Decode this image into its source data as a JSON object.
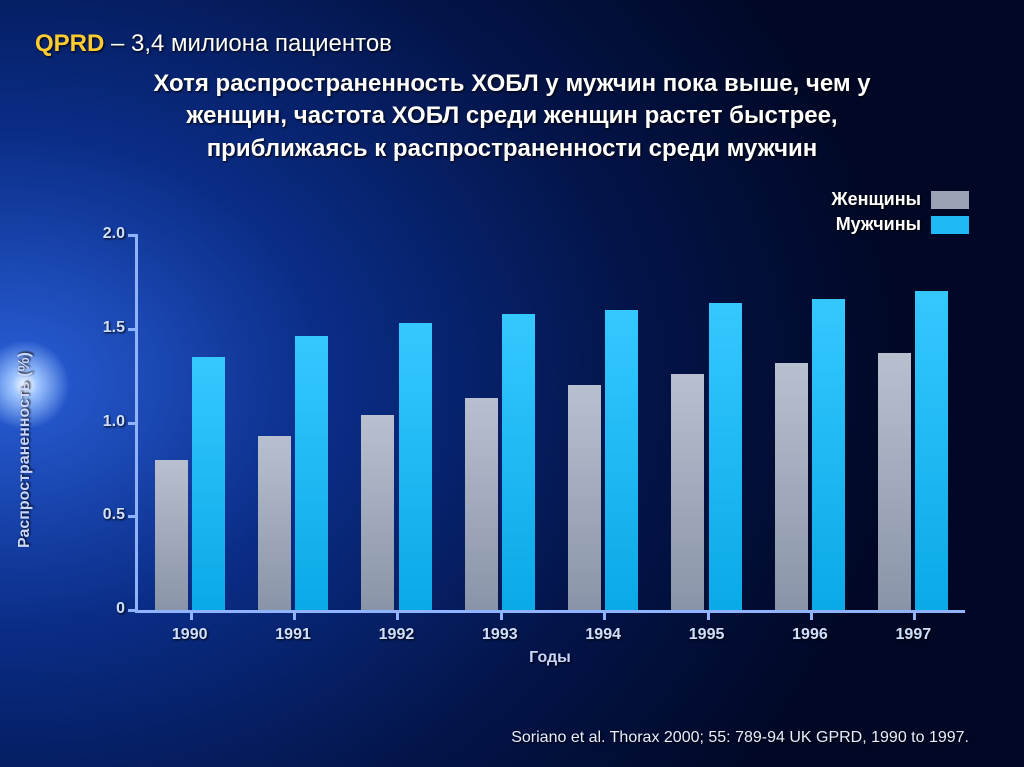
{
  "header": {
    "qprd": "QPRD",
    "patients": " – 3,4 милиона пациентов"
  },
  "subtitle_l1": "Хотя распространенность ХОБЛ у мужчин пока выше, чем у",
  "subtitle_l2": "женщин, частота ХОБЛ среди женщин растет быстрее,",
  "subtitle_l3": "приближаясь к распространенности среди мужчин",
  "legend": {
    "women": "Женщины",
    "men": "Мужчины"
  },
  "colors": {
    "women_swatch": "#99a3b5",
    "men_swatch": "#1fb9f5"
  },
  "chart": {
    "type": "bar",
    "x_title": "Годы",
    "y_title": "Распространенность (%)",
    "ylim": [
      0,
      2.0
    ],
    "ytick_step": 0.5,
    "yticks": [
      "0",
      "0.5",
      "1.0",
      "1.5",
      "2.0"
    ],
    "bar_width_pct": 32,
    "bar_gap_pct": 4,
    "axis_color": "#8fb3ff",
    "women_color": "#99a3b5",
    "men_color": "#1fb9f5",
    "years": [
      "1990",
      "1991",
      "1992",
      "1993",
      "1994",
      "1995",
      "1996",
      "1997"
    ],
    "women": [
      0.8,
      0.93,
      1.04,
      1.13,
      1.2,
      1.26,
      1.32,
      1.37
    ],
    "men": [
      1.35,
      1.46,
      1.53,
      1.58,
      1.6,
      1.64,
      1.66,
      1.7
    ]
  },
  "citation": "Soriano et al. Thorax 2000; 55: 789-94 UK GPRD, 1990 to 1997."
}
